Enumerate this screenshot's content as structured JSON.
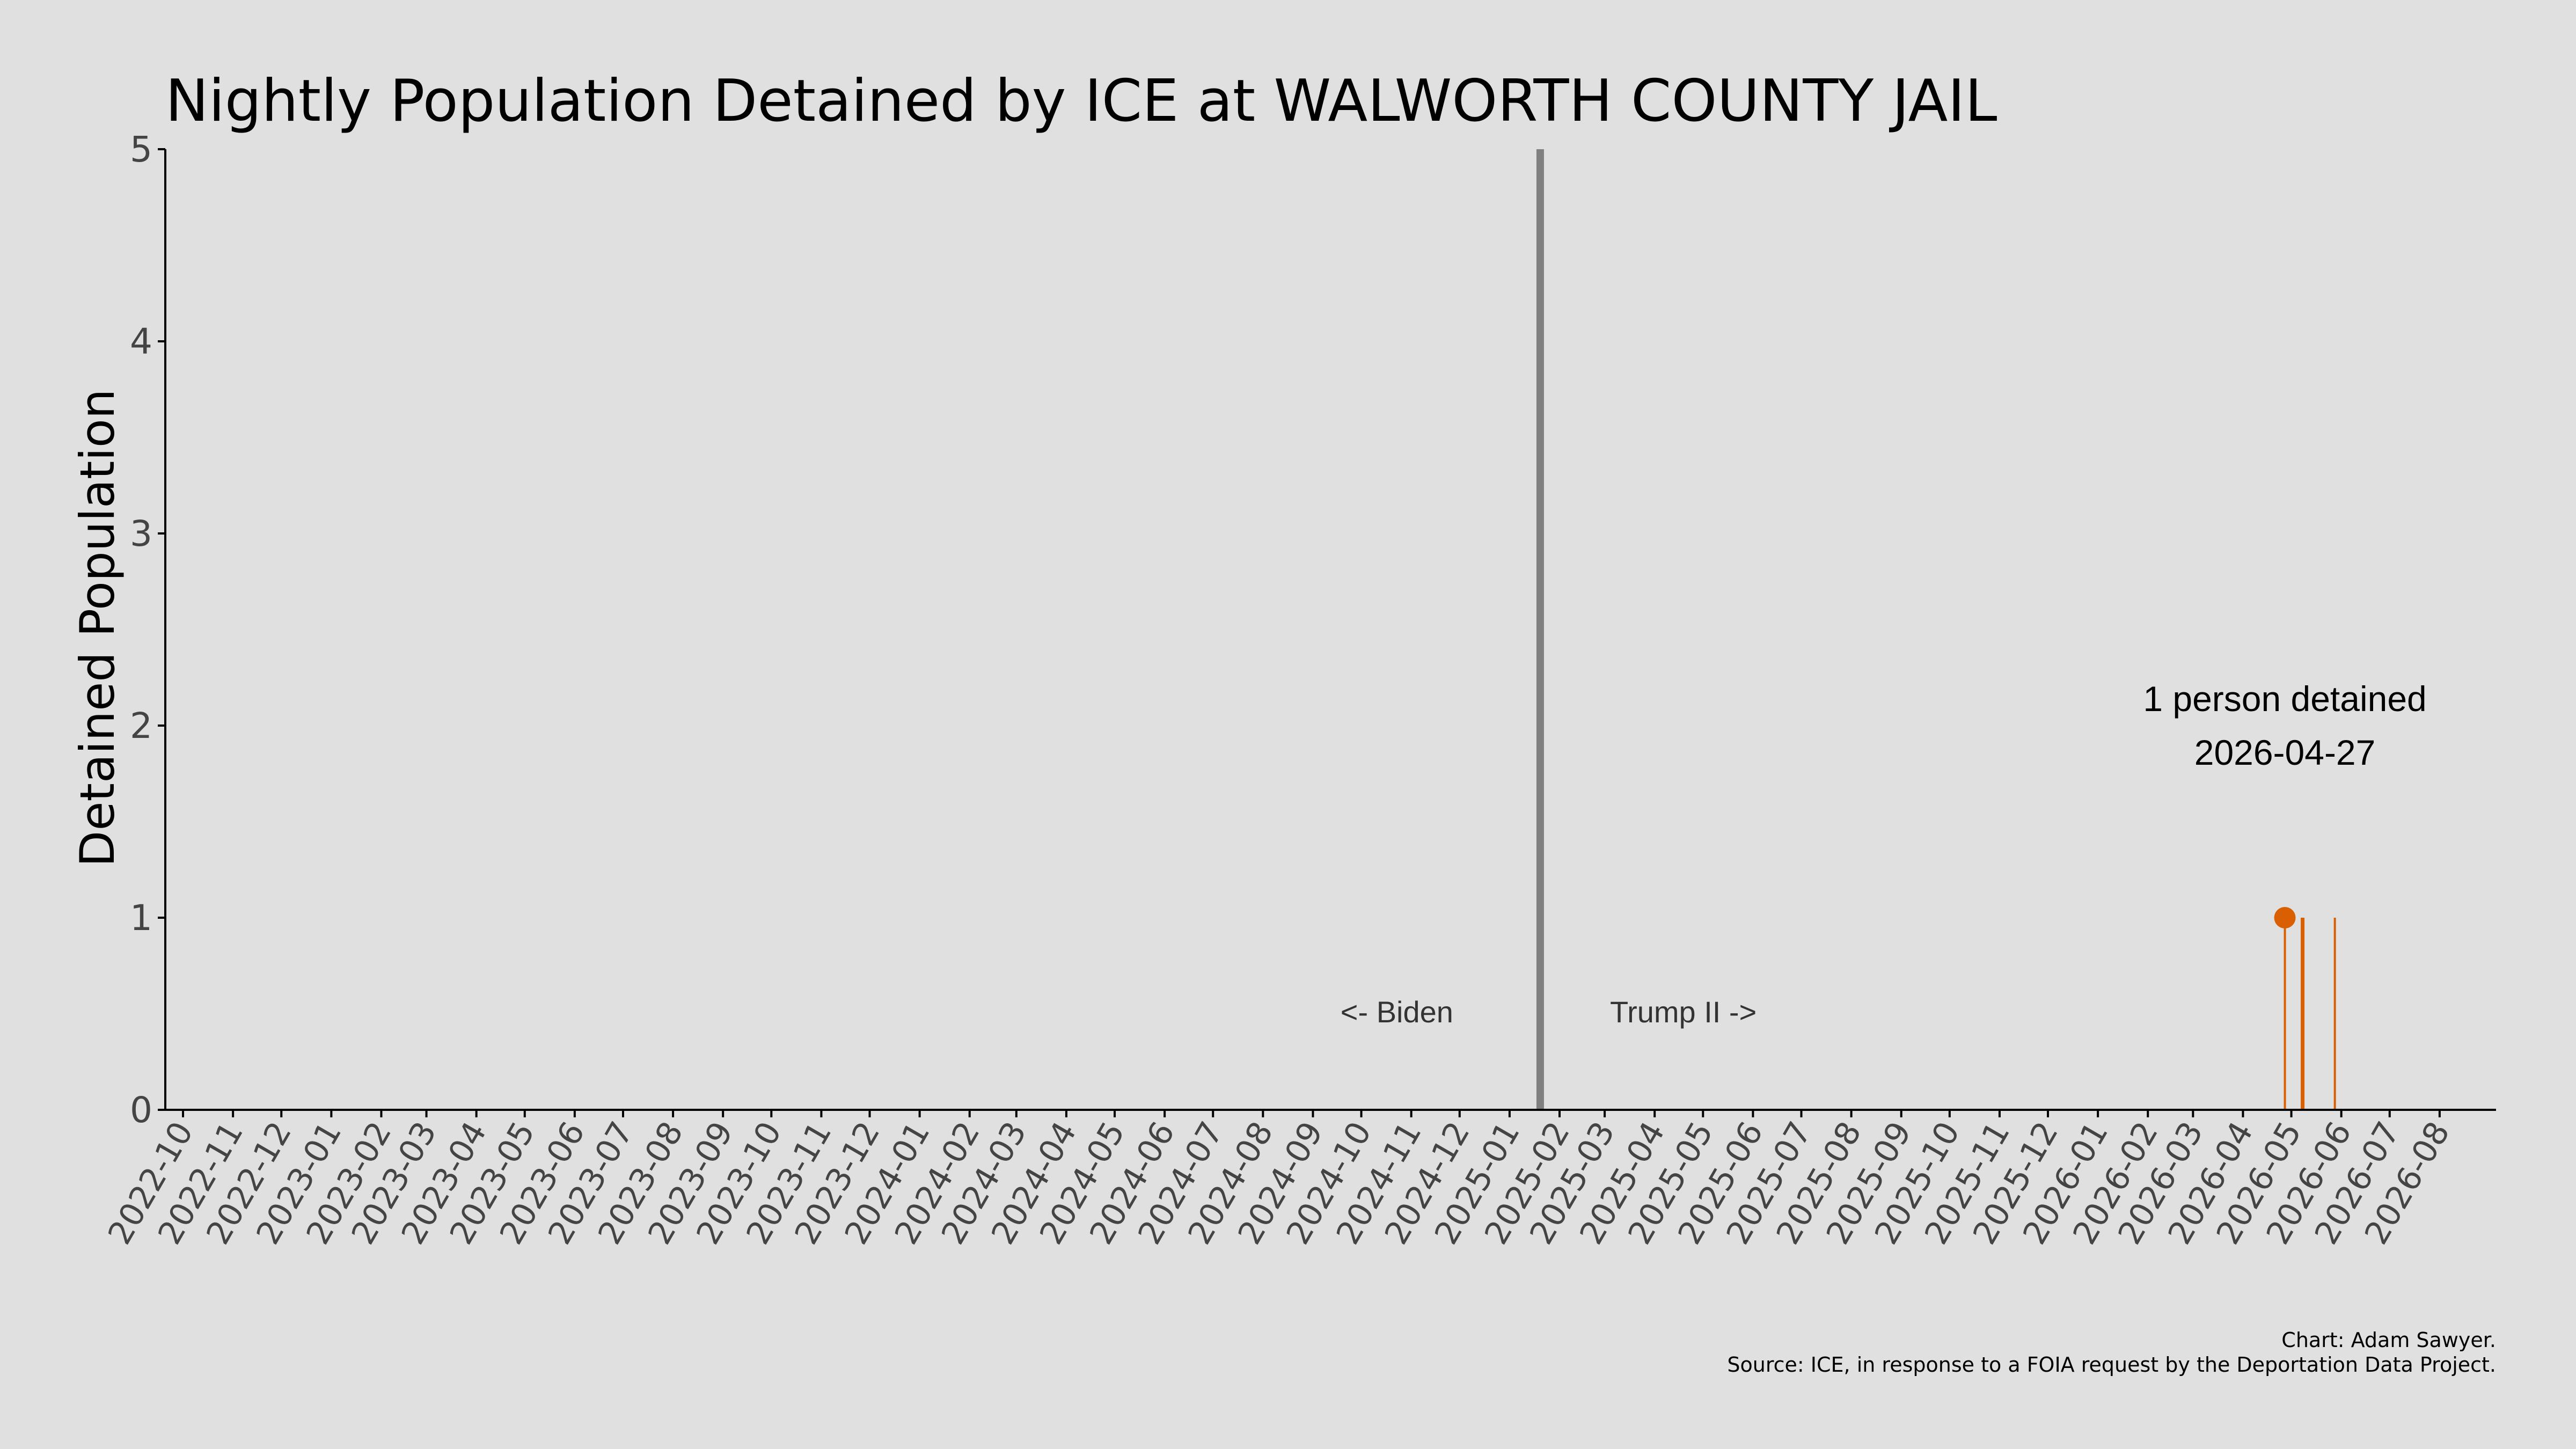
{
  "chart_data": {
    "type": "bar",
    "title": "Nightly Population Detained by ICE at WALWORTH COUNTY JAIL",
    "ylabel": "Detained Population",
    "xlabel": "",
    "ylim": [
      0,
      5
    ],
    "yticks": [
      0,
      1,
      2,
      3,
      4,
      5
    ],
    "xlim": [
      "2022-09-20",
      "2026-09-05"
    ],
    "x_tick_labels": [
      "2022-10",
      "2022-11",
      "2022-12",
      "2023-01",
      "2023-02",
      "2023-03",
      "2023-04",
      "2023-05",
      "2023-06",
      "2023-07",
      "2023-08",
      "2023-09",
      "2023-10",
      "2023-11",
      "2023-12",
      "2024-01",
      "2024-02",
      "2024-03",
      "2024-04",
      "2024-05",
      "2024-06",
      "2024-07",
      "2024-08",
      "2024-09",
      "2024-10",
      "2024-11",
      "2024-12",
      "2025-01",
      "2025-02",
      "2025-03",
      "2025-04",
      "2025-05",
      "2025-06",
      "2025-07",
      "2025-08",
      "2025-09",
      "2025-10",
      "2025-11",
      "2025-12",
      "2026-01",
      "2026-02",
      "2026-03",
      "2026-04",
      "2026-05",
      "2026-06",
      "2026-07",
      "2026-08"
    ],
    "series": [
      {
        "x": [
          "2026-04-27",
          "2026-05-08",
          "2026-05-28"
        ],
        "y": [
          1,
          1,
          1
        ]
      }
    ],
    "highlight_point": {
      "x": "2026-04-27",
      "y": 1
    },
    "reference_line": {
      "x": "2025-01-20"
    },
    "era_labels": {
      "left": "<- Biden",
      "right": "Trump II ->"
    },
    "annotation": {
      "line1": "1 person detained",
      "line2": "2026-04-27"
    },
    "grid": false,
    "colors": {
      "background": "#e0e0e0",
      "bars": "#d95f02",
      "point": "#d95f02",
      "reference_line": "#808080",
      "axis": "#000000"
    }
  },
  "footer": {
    "credit": "Chart: Adam Sawyer.",
    "source": "Source: ICE, in response to a FOIA request by the Deportation Data Project."
  }
}
